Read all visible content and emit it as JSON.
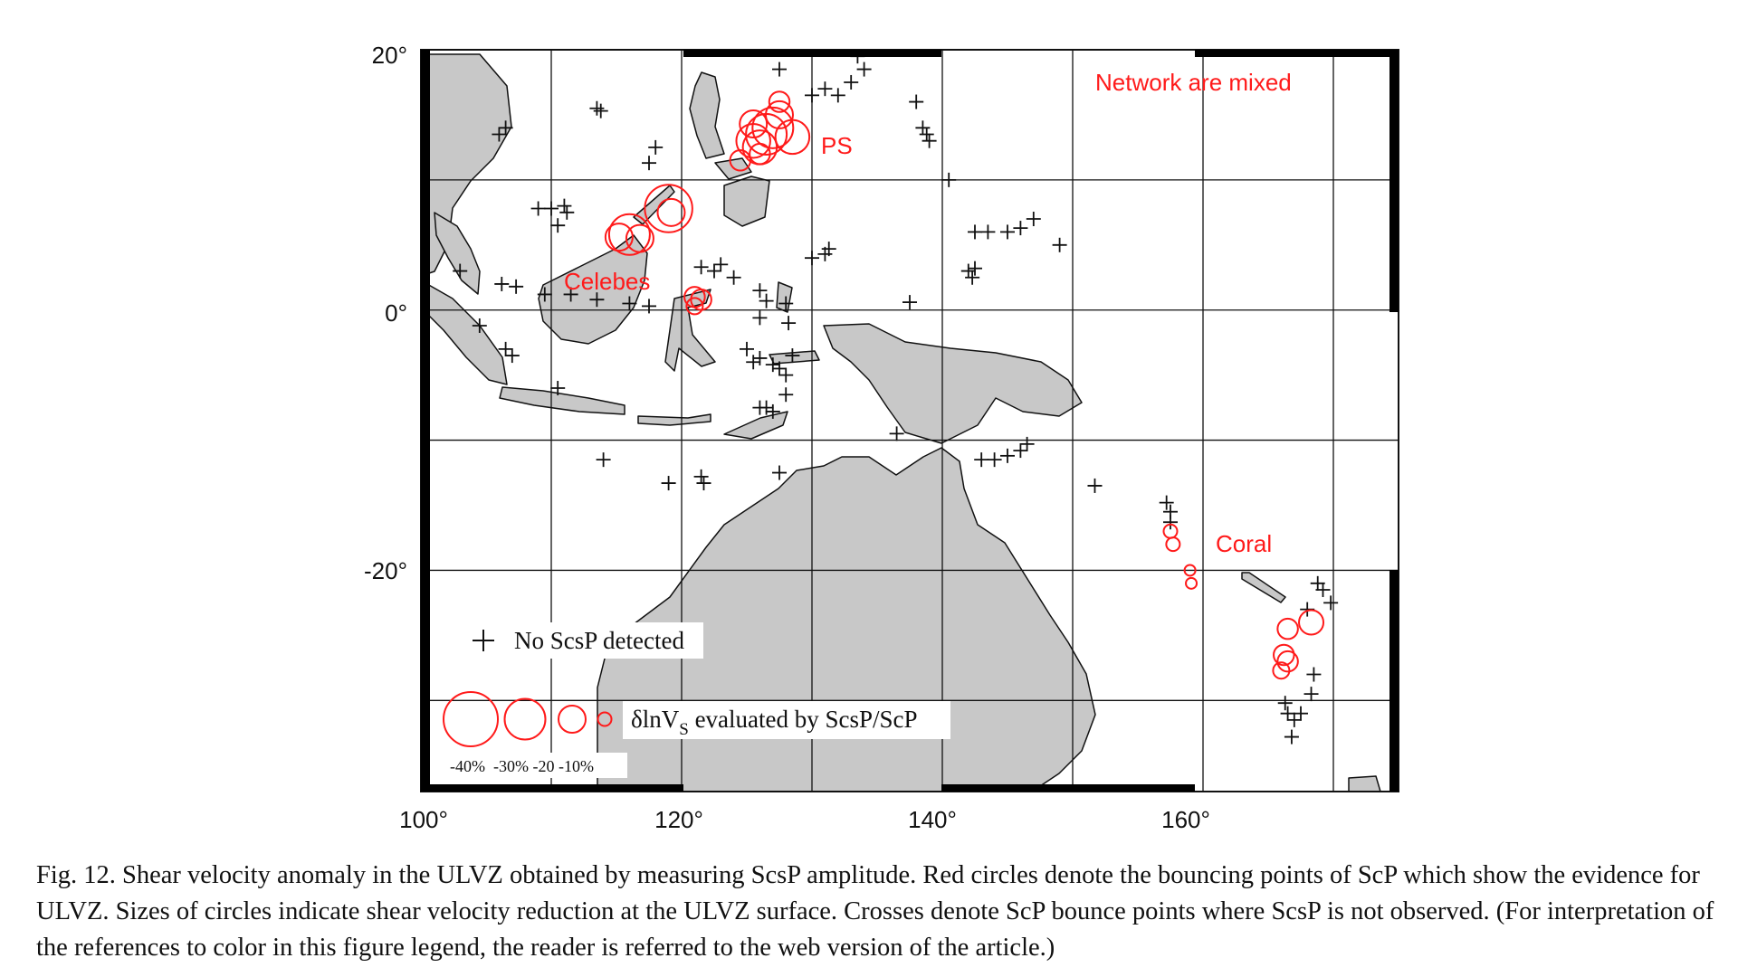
{
  "map": {
    "region": "Western Pacific / Indonesia / Australia",
    "lon_ticks": [
      "100°",
      "120°",
      "140°",
      "160°"
    ],
    "lat_ticks": [
      "20°",
      "0°",
      "-20°"
    ],
    "extent": {
      "lon": [
        100,
        175
      ],
      "lat": [
        -37,
        20
      ]
    },
    "gridlines": {
      "lon": [
        100,
        110,
        120,
        130,
        140,
        150,
        160,
        170
      ],
      "lat": [
        20,
        10,
        0,
        -10,
        -20,
        -30
      ]
    },
    "colors": {
      "land": "#c8c8c8",
      "ulvz": "#ff1a1a",
      "cross": "#111111",
      "frame": "#000000"
    },
    "labels": {
      "network": "Network are mixed",
      "ps": "PS",
      "celebes": "Celebes",
      "coral": "Coral"
    }
  },
  "legend": {
    "cross_label": "No ScsP detected",
    "circle_label_prefix": "δlnV",
    "circle_label_sub": "S",
    "circle_label_suffix": " evaluated by ScsP/ScP",
    "scale_labels": "-40%  -30% -20 -10%",
    "scale_values": [
      -40,
      -30,
      -20,
      -10
    ]
  },
  "ulvz_points": [
    {
      "lon": 126.5,
      "lat": 13.5,
      "dlnvs": -30
    },
    {
      "lon": 125.5,
      "lat": 13.0,
      "dlnvs": -25
    },
    {
      "lon": 127.0,
      "lat": 14.0,
      "dlnvs": -30
    },
    {
      "lon": 126.0,
      "lat": 12.5,
      "dlnvs": -25
    },
    {
      "lon": 127.5,
      "lat": 15.0,
      "dlnvs": -20
    },
    {
      "lon": 128.5,
      "lat": 13.3,
      "dlnvs": -25
    },
    {
      "lon": 124.5,
      "lat": 11.5,
      "dlnvs": -15
    },
    {
      "lon": 125.5,
      "lat": 14.3,
      "dlnvs": -20
    },
    {
      "lon": 127.5,
      "lat": 16.0,
      "dlnvs": -15
    },
    {
      "lon": 126.0,
      "lat": 12.0,
      "dlnvs": -15
    },
    {
      "lon": 119.0,
      "lat": 7.8,
      "dlnvs": -35
    },
    {
      "lon": 119.2,
      "lat": 7.5,
      "dlnvs": -20
    },
    {
      "lon": 116.0,
      "lat": 5.8,
      "dlnvs": -30
    },
    {
      "lon": 115.2,
      "lat": 5.6,
      "dlnvs": -20
    },
    {
      "lon": 116.8,
      "lat": 5.5,
      "dlnvs": -20
    },
    {
      "lon": 121.0,
      "lat": 1.0,
      "dlnvs": -15
    },
    {
      "lon": 121.5,
      "lat": 0.8,
      "dlnvs": -15
    },
    {
      "lon": 121.0,
      "lat": 0.3,
      "dlnvs": -12
    },
    {
      "lon": 157.5,
      "lat": -17.0,
      "dlnvs": -10
    },
    {
      "lon": 157.7,
      "lat": -18.0,
      "dlnvs": -10
    },
    {
      "lon": 159.0,
      "lat": -20.0,
      "dlnvs": -8
    },
    {
      "lon": 159.1,
      "lat": -21.0,
      "dlnvs": -8
    },
    {
      "lon": 166.5,
      "lat": -24.5,
      "dlnvs": -15
    },
    {
      "lon": 168.3,
      "lat": -24.0,
      "dlnvs": -18
    },
    {
      "lon": 166.2,
      "lat": -26.5,
      "dlnvs": -15
    },
    {
      "lon": 166.5,
      "lat": -27.0,
      "dlnvs": -15
    },
    {
      "lon": 166.0,
      "lat": -27.7,
      "dlnvs": -12
    }
  ],
  "no_scsp_points": [
    {
      "lon": 106.0,
      "lat": 13.5
    },
    {
      "lon": 106.5,
      "lat": 14.0
    },
    {
      "lon": 113.5,
      "lat": 15.5
    },
    {
      "lon": 113.8,
      "lat": 15.3
    },
    {
      "lon": 118.0,
      "lat": 12.5
    },
    {
      "lon": 117.5,
      "lat": 11.3
    },
    {
      "lon": 109.0,
      "lat": 7.8
    },
    {
      "lon": 110.0,
      "lat": 7.8
    },
    {
      "lon": 111.0,
      "lat": 8.0
    },
    {
      "lon": 111.2,
      "lat": 7.5
    },
    {
      "lon": 110.5,
      "lat": 6.5
    },
    {
      "lon": 103.0,
      "lat": 3.0
    },
    {
      "lon": 106.2,
      "lat": 2.0
    },
    {
      "lon": 107.3,
      "lat": 1.8
    },
    {
      "lon": 109.5,
      "lat": 1.2
    },
    {
      "lon": 111.5,
      "lat": 1.2
    },
    {
      "lon": 113.5,
      "lat": 0.8
    },
    {
      "lon": 116.0,
      "lat": 0.5
    },
    {
      "lon": 117.5,
      "lat": 0.3
    },
    {
      "lon": 104.5,
      "lat": -1.2
    },
    {
      "lon": 106.5,
      "lat": -3.0
    },
    {
      "lon": 107.0,
      "lat": -3.5
    },
    {
      "lon": 110.5,
      "lat": -6.0
    },
    {
      "lon": 114.0,
      "lat": -11.5
    },
    {
      "lon": 121.5,
      "lat": 3.3
    },
    {
      "lon": 122.5,
      "lat": 3.0
    },
    {
      "lon": 123.0,
      "lat": 3.5
    },
    {
      "lon": 124.0,
      "lat": 2.5
    },
    {
      "lon": 126.0,
      "lat": 1.5
    },
    {
      "lon": 126.5,
      "lat": 0.7
    },
    {
      "lon": 126.0,
      "lat": -0.6
    },
    {
      "lon": 128.0,
      "lat": 0.5
    },
    {
      "lon": 128.2,
      "lat": -1.0
    },
    {
      "lon": 125.0,
      "lat": -3.0
    },
    {
      "lon": 125.5,
      "lat": -4.0
    },
    {
      "lon": 126.0,
      "lat": -3.7
    },
    {
      "lon": 127.0,
      "lat": -4.2
    },
    {
      "lon": 127.5,
      "lat": -4.5
    },
    {
      "lon": 128.5,
      "lat": -3.5
    },
    {
      "lon": 128.0,
      "lat": -5.0
    },
    {
      "lon": 128.0,
      "lat": -6.5
    },
    {
      "lon": 126.5,
      "lat": -7.5
    },
    {
      "lon": 127.0,
      "lat": -7.8
    },
    {
      "lon": 126.0,
      "lat": -7.5
    },
    {
      "lon": 119.0,
      "lat": -13.3
    },
    {
      "lon": 121.5,
      "lat": -12.8
    },
    {
      "lon": 121.7,
      "lat": -13.3
    },
    {
      "lon": 127.5,
      "lat": -12.5
    },
    {
      "lon": 130.0,
      "lat": 4.0
    },
    {
      "lon": 131.0,
      "lat": 4.3
    },
    {
      "lon": 131.3,
      "lat": 4.7
    },
    {
      "lon": 127.5,
      "lat": 18.5
    },
    {
      "lon": 130.0,
      "lat": 16.5
    },
    {
      "lon": 131.0,
      "lat": 17.0
    },
    {
      "lon": 132.0,
      "lat": 16.5
    },
    {
      "lon": 133.0,
      "lat": 17.5
    },
    {
      "lon": 133.5,
      "lat": 19.5
    },
    {
      "lon": 134.0,
      "lat": 18.5
    },
    {
      "lon": 138.0,
      "lat": 16.0
    },
    {
      "lon": 138.5,
      "lat": 14.0
    },
    {
      "lon": 138.8,
      "lat": 13.5
    },
    {
      "lon": 139.0,
      "lat": 13.0
    },
    {
      "lon": 140.5,
      "lat": 10.0
    },
    {
      "lon": 142.5,
      "lat": 6.0
    },
    {
      "lon": 143.5,
      "lat": 6.0
    },
    {
      "lon": 145.0,
      "lat": 6.0
    },
    {
      "lon": 146.0,
      "lat": 6.3
    },
    {
      "lon": 147.0,
      "lat": 7.0
    },
    {
      "lon": 149.0,
      "lat": 5.0
    },
    {
      "lon": 142.0,
      "lat": 3.0
    },
    {
      "lon": 142.3,
      "lat": 2.5
    },
    {
      "lon": 142.5,
      "lat": 3.2
    },
    {
      "lon": 137.5,
      "lat": 0.6
    },
    {
      "lon": 136.5,
      "lat": -9.5
    },
    {
      "lon": 143.0,
      "lat": -11.5
    },
    {
      "lon": 144.0,
      "lat": -11.5
    },
    {
      "lon": 145.0,
      "lat": -11.2
    },
    {
      "lon": 146.0,
      "lat": -10.8
    },
    {
      "lon": 146.5,
      "lat": -10.3
    },
    {
      "lon": 151.7,
      "lat": -13.5
    },
    {
      "lon": 157.2,
      "lat": -14.8
    },
    {
      "lon": 157.5,
      "lat": -15.5
    },
    {
      "lon": 157.5,
      "lat": -16.3
    },
    {
      "lon": 168.8,
      "lat": -21.0
    },
    {
      "lon": 169.2,
      "lat": -21.5
    },
    {
      "lon": 169.8,
      "lat": -22.5
    },
    {
      "lon": 168.0,
      "lat": -23.0
    },
    {
      "lon": 168.5,
      "lat": -28.0
    },
    {
      "lon": 168.3,
      "lat": -29.5
    },
    {
      "lon": 166.3,
      "lat": -30.2
    },
    {
      "lon": 166.5,
      "lat": -31.0
    },
    {
      "lon": 167.0,
      "lat": -31.5
    },
    {
      "lon": 166.8,
      "lat": -32.8
    },
    {
      "lon": 167.5,
      "lat": -31.0
    }
  ],
  "caption": "Fig. 12.  Shear velocity anomaly in the ULVZ obtained by measuring ScsP amplitude. Red circles denote the bouncing points of ScP which show the evidence for ULVZ. Sizes of circles indicate shear velocity reduction at the ULVZ surface. Crosses denote ScP bounce points where ScsP is not observed. (For interpretation of the references to color in this figure legend, the reader is referred to the web version of the article.)"
}
